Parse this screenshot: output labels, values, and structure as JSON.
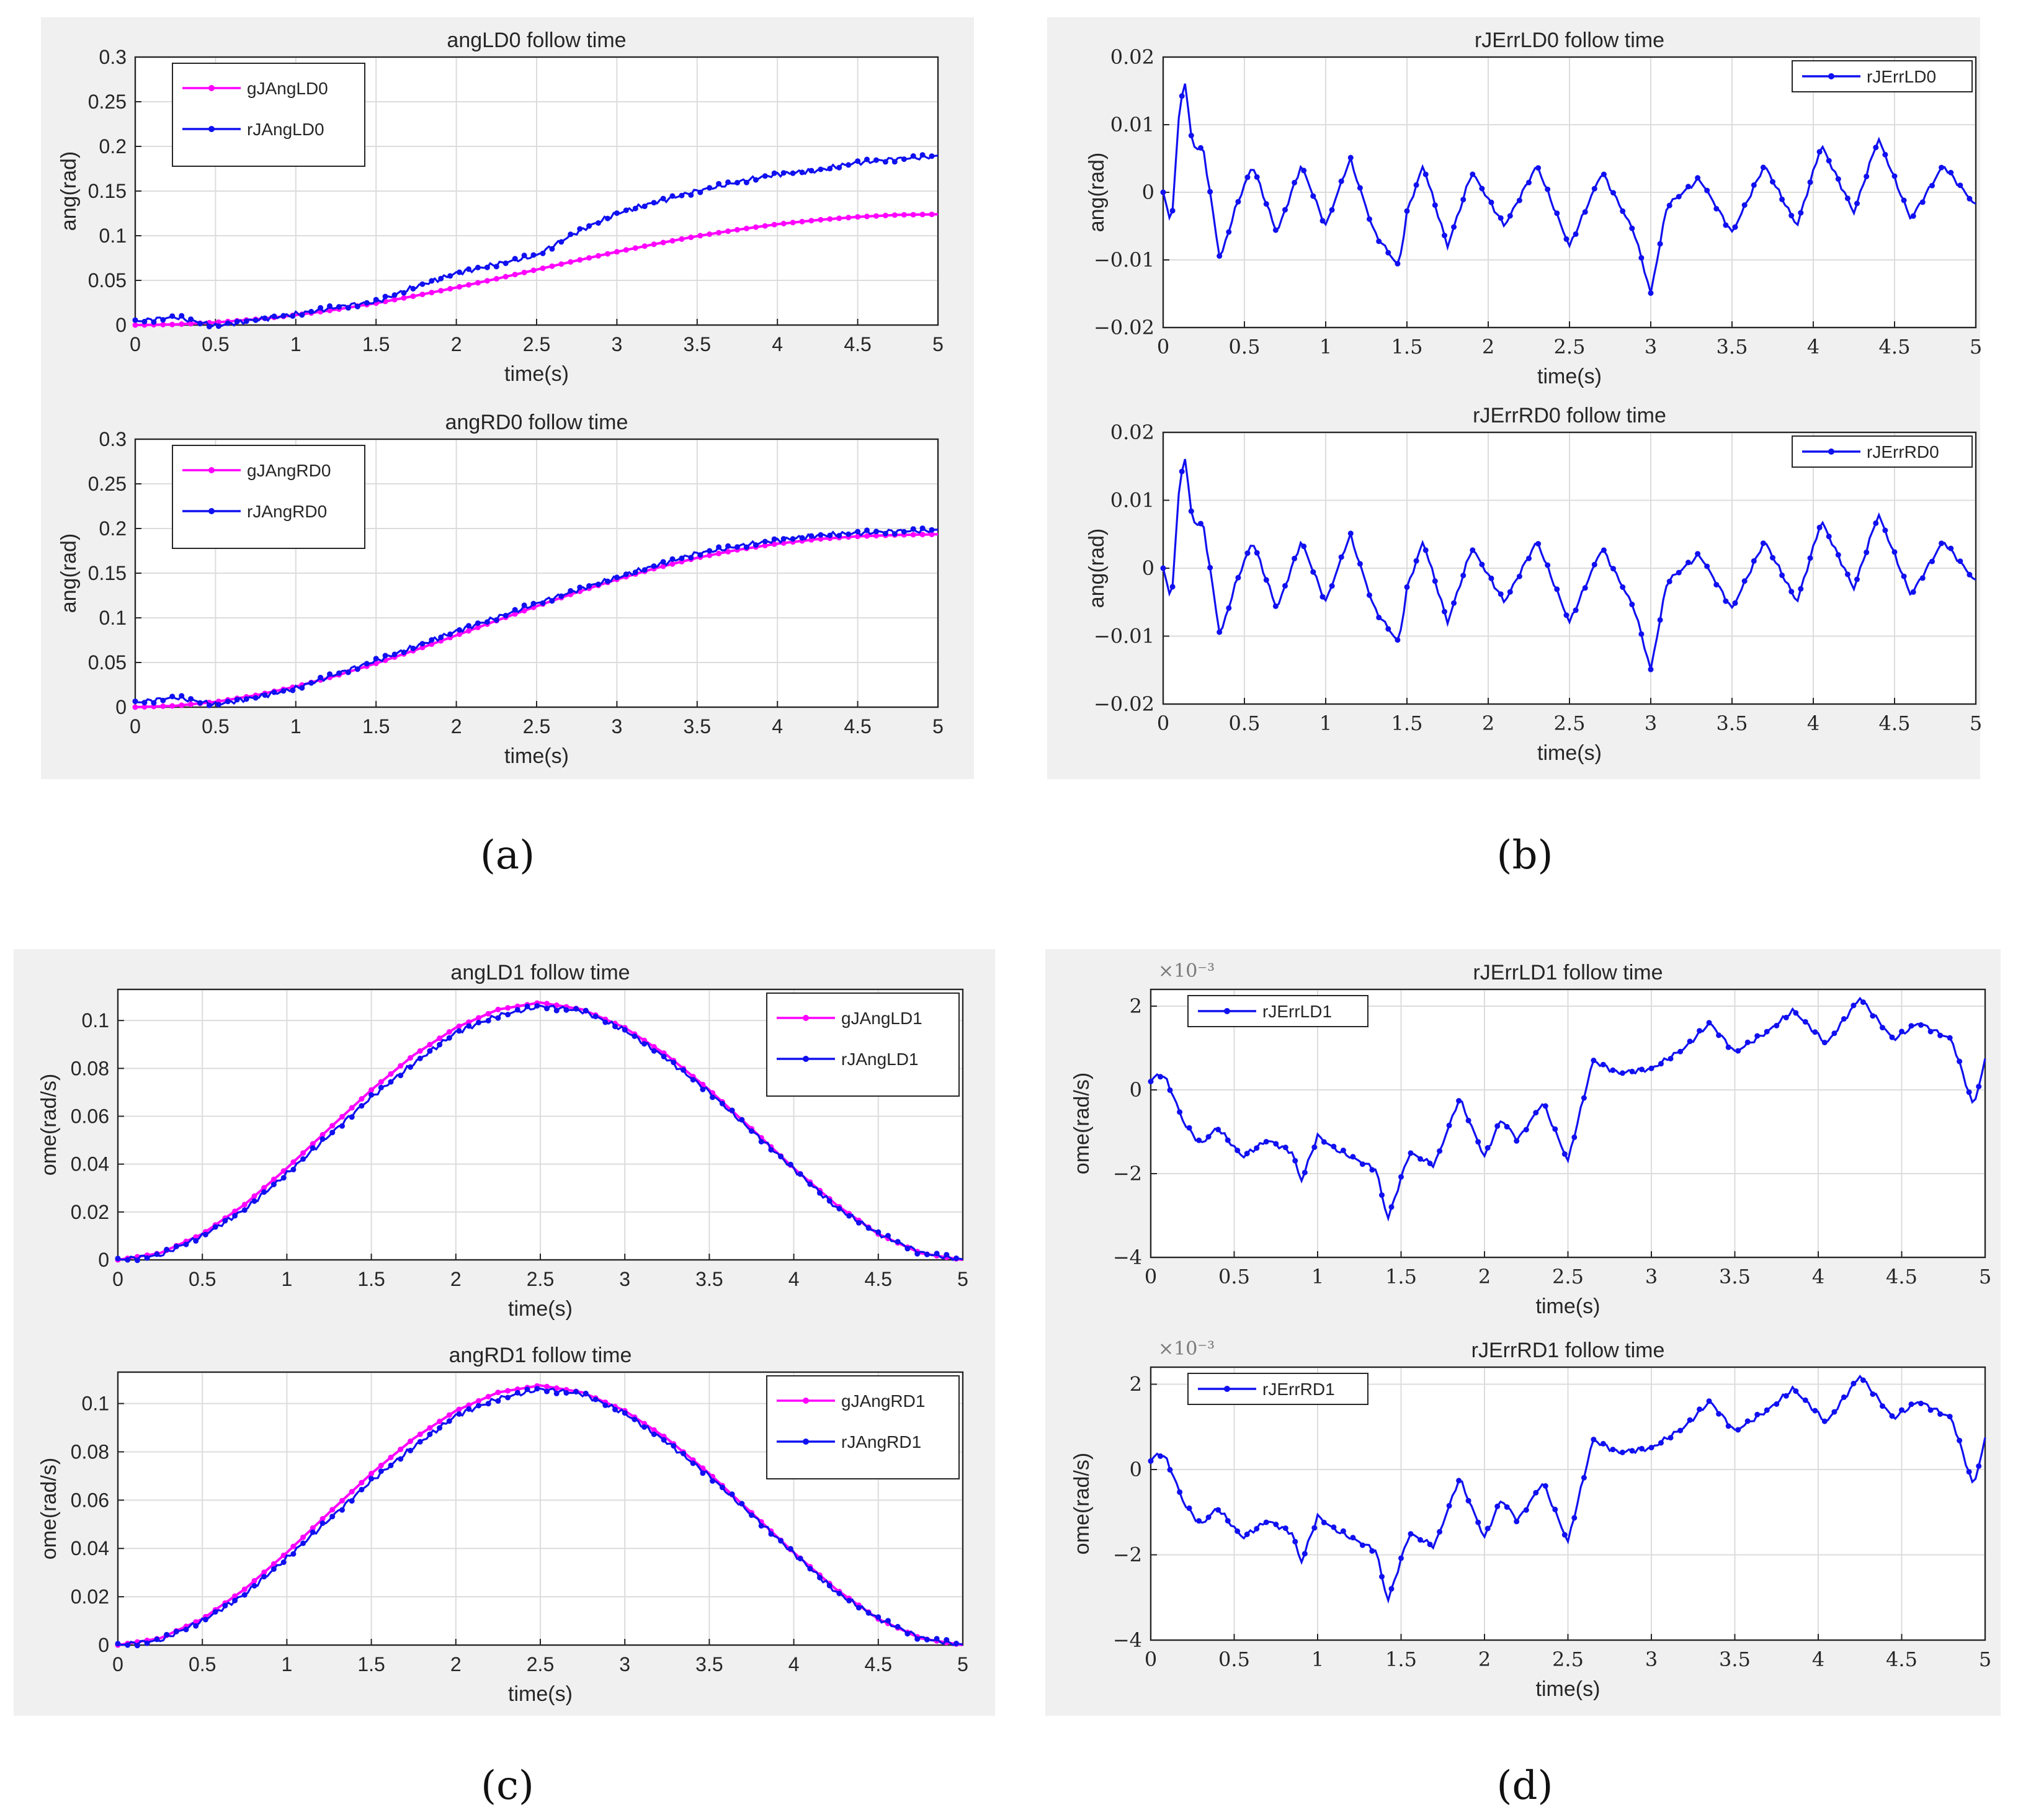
{
  "panel_labels": [
    "(a)",
    "(b)",
    "(c)",
    "(d)"
  ],
  "colors": {
    "given": "#ff00ff",
    "real": "#1010f0",
    "error": "#1010f0"
  },
  "chart_data": [
    {
      "type": "line",
      "panel": "(a)",
      "title": "angLD0 follow time",
      "xlabel": "time(s)",
      "ylabel": "ang(rad)",
      "xlim": [
        0,
        5
      ],
      "ylim": [
        0,
        0.3
      ],
      "xticks": [
        "0",
        "0.5",
        "1",
        "1.5",
        "2",
        "2.5",
        "3",
        "3.5",
        "4",
        "4.5",
        "5"
      ],
      "yticks": [
        "0",
        "0.05",
        "0.1",
        "0.15",
        "0.2",
        "0.25",
        "0.3"
      ],
      "legend": "top-left",
      "tick_font": "sans",
      "grid": true,
      "x": [
        0,
        0.25,
        0.5,
        0.75,
        1,
        1.25,
        1.5,
        1.75,
        2,
        2.25,
        2.5,
        2.75,
        3,
        3.25,
        3.5,
        3.75,
        4,
        4.25,
        4.5,
        4.75,
        5
      ],
      "series": [
        {
          "name": "gJAngLD0",
          "color": "given",
          "values": [
            0,
            0.0007,
            0.0029,
            0.0064,
            0.0111,
            0.0173,
            0.0245,
            0.0329,
            0.042,
            0.0518,
            0.062,
            0.0722,
            0.082,
            0.0911,
            0.0995,
            0.1067,
            0.1129,
            0.1176,
            0.1211,
            0.1233,
            0.124
          ]
        },
        {
          "name": "rJAngLD0",
          "color": "real",
          "values": [
            0.004,
            0.009,
            -0.001,
            0.006,
            0.012,
            0.02,
            0.026,
            0.043,
            0.058,
            0.068,
            0.078,
            0.104,
            0.125,
            0.138,
            0.15,
            0.16,
            0.169,
            0.173,
            0.182,
            0.186,
            0.189
          ]
        }
      ]
    },
    {
      "type": "line",
      "panel": "(a)",
      "title": "angRD0 follow time",
      "xlabel": "time(s)",
      "ylabel": "ang(rad)",
      "xlim": [
        0,
        5
      ],
      "ylim": [
        0,
        0.3
      ],
      "xticks": [
        "0",
        "0.5",
        "1",
        "1.5",
        "2",
        "2.5",
        "3",
        "3.5",
        "4",
        "4.5",
        "5"
      ],
      "yticks": [
        "0",
        "0.05",
        "0.1",
        "0.15",
        "0.2",
        "0.25",
        "0.3"
      ],
      "legend": "top-left",
      "tick_font": "sans",
      "grid": true,
      "x": [
        0,
        0.25,
        0.5,
        0.75,
        1,
        1.25,
        1.5,
        1.75,
        2,
        2.25,
        2.5,
        2.75,
        3,
        3.25,
        3.5,
        3.75,
        4,
        4.25,
        4.5,
        4.75,
        5
      ],
      "series": [
        {
          "name": "gJAngRD0",
          "color": "given",
          "values": [
            0,
            0.0015,
            0.0059,
            0.0132,
            0.023,
            0.0351,
            0.049,
            0.0643,
            0.0804,
            0.0968,
            0.113,
            0.1286,
            0.143,
            0.156,
            0.1672,
            0.1761,
            0.183,
            0.1881,
            0.1912,
            0.1928,
            0.1935
          ]
        },
        {
          "name": "rJAngRD0",
          "color": "real",
          "values": [
            0.005,
            0.011,
            0.003,
            0.011,
            0.021,
            0.037,
            0.052,
            0.068,
            0.085,
            0.1,
            0.116,
            0.131,
            0.145,
            0.159,
            0.172,
            0.18,
            0.187,
            0.192,
            0.195,
            0.197,
            0.198
          ]
        }
      ]
    },
    {
      "type": "line",
      "panel": "(b)",
      "title": "rJErrLD0 follow time",
      "xlabel": "time(s)",
      "ylabel": "ang(rad)",
      "xlim": [
        0,
        5
      ],
      "ylim": [
        -0.02,
        0.02
      ],
      "xticks": [
        "0",
        "0.5",
        "1",
        "1.5",
        "2",
        "2.5",
        "3",
        "3.5",
        "4",
        "4.5",
        "5"
      ],
      "yticks": [
        "−0.02",
        "−0.01",
        "0",
        "0.01",
        "0.02"
      ],
      "legend": "top-right",
      "tick_font": "serif",
      "grid": true,
      "x": [
        0,
        0.05,
        0.1,
        0.13,
        0.18,
        0.25,
        0.3,
        0.35,
        0.45,
        0.55,
        0.7,
        0.85,
        1.0,
        1.15,
        1.3,
        1.45,
        1.5,
        1.6,
        1.75,
        1.9,
        2.1,
        2.3,
        2.5,
        2.7,
        2.9,
        3.0,
        3.1,
        3.3,
        3.5,
        3.7,
        3.9,
        4.05,
        4.25,
        4.4,
        4.6,
        4.8,
        5.0
      ],
      "series": [
        {
          "name": "rJErrLD0",
          "color": "error",
          "values": [
            0.0,
            -0.005,
            0.012,
            0.017,
            0.007,
            0.006,
            -0.002,
            -0.01,
            -0.002,
            0.004,
            -0.006,
            0.004,
            -0.005,
            0.005,
            -0.006,
            -0.011,
            -0.003,
            0.004,
            -0.008,
            0.003,
            -0.005,
            0.004,
            -0.008,
            0.003,
            -0.006,
            -0.015,
            -0.002,
            0.002,
            -0.006,
            0.004,
            -0.005,
            0.007,
            -0.003,
            0.008,
            -0.004,
            0.004,
            -0.002
          ]
        }
      ]
    },
    {
      "type": "line",
      "panel": "(b)",
      "title": "rJErrRD0 follow time",
      "xlabel": "time(s)",
      "ylabel": "ang(rad)",
      "xlim": [
        0,
        5
      ],
      "ylim": [
        -0.02,
        0.02
      ],
      "xticks": [
        "0",
        "0.5",
        "1",
        "1.5",
        "2",
        "2.5",
        "3",
        "3.5",
        "4",
        "4.5",
        "5"
      ],
      "yticks": [
        "−0.02",
        "−0.01",
        "0",
        "0.01",
        "0.02"
      ],
      "legend": "top-right",
      "tick_font": "serif",
      "grid": true,
      "x": [
        0,
        0.05,
        0.1,
        0.13,
        0.18,
        0.25,
        0.3,
        0.35,
        0.45,
        0.55,
        0.7,
        0.85,
        1.0,
        1.15,
        1.3,
        1.45,
        1.5,
        1.6,
        1.75,
        1.9,
        2.1,
        2.3,
        2.5,
        2.7,
        2.9,
        3.0,
        3.1,
        3.3,
        3.5,
        3.7,
        3.9,
        4.05,
        4.25,
        4.4,
        4.6,
        4.8,
        5.0
      ],
      "series": [
        {
          "name": "rJErrRD0",
          "color": "error",
          "values": [
            0.0,
            -0.005,
            0.012,
            0.017,
            0.007,
            0.006,
            -0.002,
            -0.01,
            -0.002,
            0.004,
            -0.006,
            0.004,
            -0.005,
            0.005,
            -0.006,
            -0.011,
            -0.003,
            0.004,
            -0.008,
            0.003,
            -0.005,
            0.004,
            -0.008,
            0.003,
            -0.006,
            -0.015,
            -0.002,
            0.002,
            -0.006,
            0.004,
            -0.005,
            0.007,
            -0.003,
            0.008,
            -0.004,
            0.004,
            -0.002
          ]
        }
      ]
    },
    {
      "type": "line",
      "panel": "(c)",
      "title": "angLD1 follow time",
      "xlabel": "time(s)",
      "ylabel": "ome(rad/s)",
      "xlim": [
        0,
        5
      ],
      "ylim": [
        0,
        0.113
      ],
      "xticks": [
        "0",
        "0.5",
        "1",
        "1.5",
        "2",
        "2.5",
        "3",
        "3.5",
        "4",
        "4.5",
        "5"
      ],
      "yticks": [
        "0",
        "0.02",
        "0.04",
        "0.06",
        "0.08",
        "0.1"
      ],
      "legend": "top-right",
      "tick_font": "sans",
      "grid": true,
      "x": [
        0,
        0.25,
        0.5,
        0.75,
        1,
        1.25,
        1.5,
        1.75,
        2,
        2.25,
        2.5,
        2.75,
        3,
        3.25,
        3.5,
        3.75,
        4,
        4.25,
        4.5,
        4.75,
        5
      ],
      "series": [
        {
          "name": "gJAngLD1",
          "color": "given",
          "values": [
            0,
            0.0028,
            0.0108,
            0.0231,
            0.0383,
            0.0548,
            0.071,
            0.0855,
            0.097,
            0.1046,
            0.1075,
            0.1046,
            0.097,
            0.0855,
            0.071,
            0.0548,
            0.0383,
            0.0231,
            0.0108,
            0.0028,
            0
          ]
        },
        {
          "name": "rJAngLD1",
          "color": "real",
          "values": [
            0,
            0.002,
            0.01,
            0.021,
            0.036,
            0.052,
            0.068,
            0.082,
            0.095,
            0.102,
            0.106,
            0.104,
            0.096,
            0.084,
            0.07,
            0.054,
            0.038,
            0.022,
            0.011,
            0.003,
            0
          ]
        }
      ]
    },
    {
      "type": "line",
      "panel": "(c)",
      "title": "angRD1 follow time",
      "xlabel": "time(s)",
      "ylabel": "ome(rad/s)",
      "xlim": [
        0,
        5
      ],
      "ylim": [
        0,
        0.113
      ],
      "xticks": [
        "0",
        "0.5",
        "1",
        "1.5",
        "2",
        "2.5",
        "3",
        "3.5",
        "4",
        "4.5",
        "5"
      ],
      "yticks": [
        "0",
        "0.02",
        "0.04",
        "0.06",
        "0.08",
        "0.1"
      ],
      "legend": "top-right",
      "tick_font": "sans",
      "grid": true,
      "x": [
        0,
        0.25,
        0.5,
        0.75,
        1,
        1.25,
        1.5,
        1.75,
        2,
        2.25,
        2.5,
        2.75,
        3,
        3.25,
        3.5,
        3.75,
        4,
        4.25,
        4.5,
        4.75,
        5
      ],
      "series": [
        {
          "name": "gJAngRD1",
          "color": "given",
          "values": [
            0,
            0.0028,
            0.0108,
            0.0231,
            0.0383,
            0.0548,
            0.071,
            0.0855,
            0.097,
            0.1046,
            0.1075,
            0.1046,
            0.097,
            0.0855,
            0.071,
            0.0548,
            0.0383,
            0.0231,
            0.0108,
            0.0028,
            0
          ]
        },
        {
          "name": "rJAngRD1",
          "color": "real",
          "values": [
            0,
            0.002,
            0.01,
            0.021,
            0.036,
            0.052,
            0.068,
            0.082,
            0.095,
            0.102,
            0.106,
            0.104,
            0.096,
            0.084,
            0.07,
            0.054,
            0.038,
            0.022,
            0.011,
            0.003,
            0
          ]
        }
      ]
    },
    {
      "type": "line",
      "panel": "(d)",
      "title": "rJErrLD1 follow time",
      "xlabel": "time(s)",
      "ylabel": "ome(rad/s)",
      "scale_label": "×10⁻³",
      "xlim": [
        0,
        5
      ],
      "ylim": [
        -4,
        2.4
      ],
      "xticks": [
        "0",
        "0.5",
        "1",
        "1.5",
        "2",
        "2.5",
        "3",
        "3.5",
        "4",
        "4.5",
        "5"
      ],
      "yticks": [
        "−4",
        "−2",
        "0",
        "2"
      ],
      "legend": "top-left",
      "tick_font": "serif",
      "grid": true,
      "x": [
        0,
        0.05,
        0.1,
        0.2,
        0.3,
        0.4,
        0.55,
        0.7,
        0.85,
        0.9,
        1.0,
        1.1,
        1.25,
        1.35,
        1.42,
        1.55,
        1.7,
        1.85,
        2.0,
        2.1,
        2.2,
        2.35,
        2.5,
        2.65,
        2.8,
        3.0,
        3.2,
        3.35,
        3.5,
        3.7,
        3.85,
        4.05,
        4.25,
        4.45,
        4.6,
        4.8,
        4.93,
        5.0
      ],
      "series": [
        {
          "name": "rJErrLD1",
          "color": "error",
          "values": [
            0.2,
            0.4,
            0.2,
            -0.8,
            -1.3,
            -0.9,
            -1.6,
            -1.2,
            -1.5,
            -2.2,
            -1.1,
            -1.4,
            -1.7,
            -1.9,
            -3.1,
            -1.5,
            -1.8,
            -0.2,
            -1.6,
            -0.7,
            -1.2,
            -0.3,
            -1.7,
            0.7,
            0.4,
            0.5,
            1.0,
            1.6,
            0.9,
            1.4,
            1.9,
            1.1,
            2.2,
            1.2,
            1.6,
            1.2,
            -0.4,
            0.7
          ]
        }
      ]
    },
    {
      "type": "line",
      "panel": "(d)",
      "title": "rJErrRD1 follow time",
      "xlabel": "time(s)",
      "ylabel": "ome(rad/s)",
      "scale_label": "×10⁻³",
      "xlim": [
        0,
        5
      ],
      "ylim": [
        -4,
        2.4
      ],
      "xticks": [
        "0",
        "0.5",
        "1",
        "1.5",
        "2",
        "2.5",
        "3",
        "3.5",
        "4",
        "4.5",
        "5"
      ],
      "yticks": [
        "−4",
        "−2",
        "0",
        "2"
      ],
      "legend": "top-left",
      "tick_font": "serif",
      "grid": true,
      "x": [
        0,
        0.05,
        0.1,
        0.2,
        0.3,
        0.4,
        0.55,
        0.7,
        0.85,
        0.9,
        1.0,
        1.1,
        1.25,
        1.35,
        1.42,
        1.55,
        1.7,
        1.85,
        2.0,
        2.1,
        2.2,
        2.35,
        2.5,
        2.65,
        2.8,
        3.0,
        3.2,
        3.35,
        3.5,
        3.7,
        3.85,
        4.05,
        4.25,
        4.45,
        4.6,
        4.8,
        4.93,
        5.0
      ],
      "series": [
        {
          "name": "rJErrRD1",
          "color": "error",
          "values": [
            0.2,
            0.4,
            0.2,
            -0.8,
            -1.3,
            -0.9,
            -1.6,
            -1.2,
            -1.5,
            -2.2,
            -1.1,
            -1.4,
            -1.7,
            -1.9,
            -3.1,
            -1.5,
            -1.8,
            -0.2,
            -1.6,
            -0.7,
            -1.2,
            -0.3,
            -1.7,
            0.7,
            0.4,
            0.5,
            1.0,
            1.6,
            0.9,
            1.4,
            1.9,
            1.1,
            2.2,
            1.2,
            1.6,
            1.2,
            -0.4,
            0.7
          ]
        }
      ]
    }
  ]
}
